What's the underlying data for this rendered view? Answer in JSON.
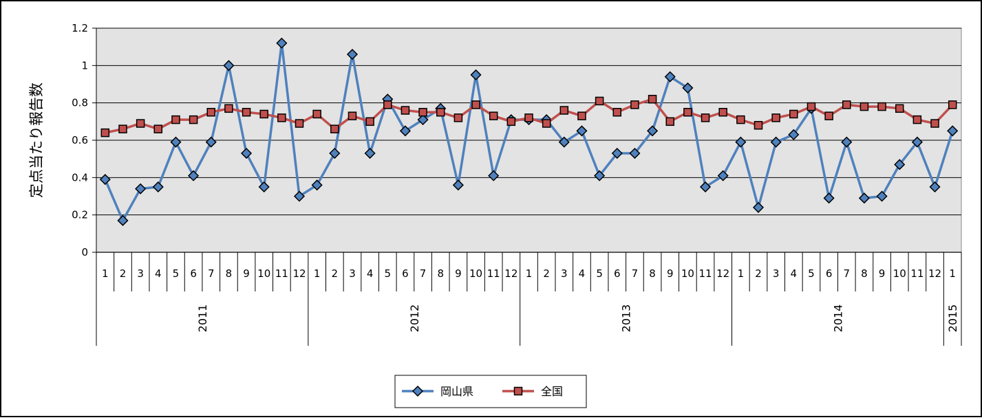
{
  "chart_data": {
    "type": "line",
    "title": "",
    "xlabel": "",
    "ylabel": "定点当たり報告数",
    "ylim": [
      0,
      1.2
    ],
    "yticks": [
      "0",
      "0.2",
      "0.4",
      "0.6",
      "0.8",
      "1",
      "1.2"
    ],
    "grid": true,
    "legend_position": "bottom",
    "months": [
      "1",
      "2",
      "3",
      "4",
      "5",
      "6",
      "7",
      "8",
      "9",
      "10",
      "11",
      "12",
      "1",
      "2",
      "3",
      "4",
      "5",
      "6",
      "7",
      "8",
      "9",
      "10",
      "11",
      "12",
      "1",
      "2",
      "3",
      "4",
      "5",
      "6",
      "7",
      "8",
      "9",
      "10",
      "11",
      "12",
      "1",
      "2",
      "3",
      "4",
      "5",
      "6",
      "7",
      "8",
      "9",
      "10",
      "11",
      "12",
      "1"
    ],
    "years": [
      {
        "label": "2011",
        "start": 0,
        "count": 12
      },
      {
        "label": "2012",
        "start": 12,
        "count": 12
      },
      {
        "label": "2013",
        "start": 24,
        "count": 12
      },
      {
        "label": "2014",
        "start": 36,
        "count": 12
      },
      {
        "label": "2015",
        "start": 48,
        "count": 1
      }
    ],
    "series": [
      {
        "name": "岡山県",
        "color": "#4f81bd",
        "marker": "diamond",
        "values": [
          0.39,
          0.17,
          0.34,
          0.35,
          0.59,
          0.41,
          0.59,
          1.0,
          0.53,
          0.35,
          1.12,
          0.3,
          0.36,
          0.53,
          1.06,
          0.53,
          0.82,
          0.65,
          0.71,
          0.77,
          0.36,
          0.95,
          0.41,
          0.71,
          0.71,
          0.71,
          0.59,
          0.65,
          0.41,
          0.53,
          0.53,
          0.65,
          0.94,
          0.88,
          0.35,
          0.41,
          0.59,
          0.24,
          0.59,
          0.63,
          0.77,
          0.29,
          0.59,
          0.29,
          0.3,
          0.47,
          0.59,
          0.35,
          0.65
        ]
      },
      {
        "name": "全国",
        "color": "#c0504d",
        "marker": "square",
        "values": [
          0.64,
          0.66,
          0.69,
          0.66,
          0.71,
          0.71,
          0.75,
          0.77,
          0.75,
          0.74,
          0.72,
          0.69,
          0.74,
          0.66,
          0.73,
          0.7,
          0.79,
          0.76,
          0.75,
          0.75,
          0.72,
          0.79,
          0.73,
          0.7,
          0.72,
          0.69,
          0.76,
          0.73,
          0.81,
          0.75,
          0.79,
          0.82,
          0.7,
          0.75,
          0.72,
          0.75,
          0.71,
          0.68,
          0.72,
          0.74,
          0.78,
          0.73,
          0.79,
          0.78,
          0.78,
          0.77,
          0.71,
          0.69,
          0.79
        ]
      }
    ]
  }
}
